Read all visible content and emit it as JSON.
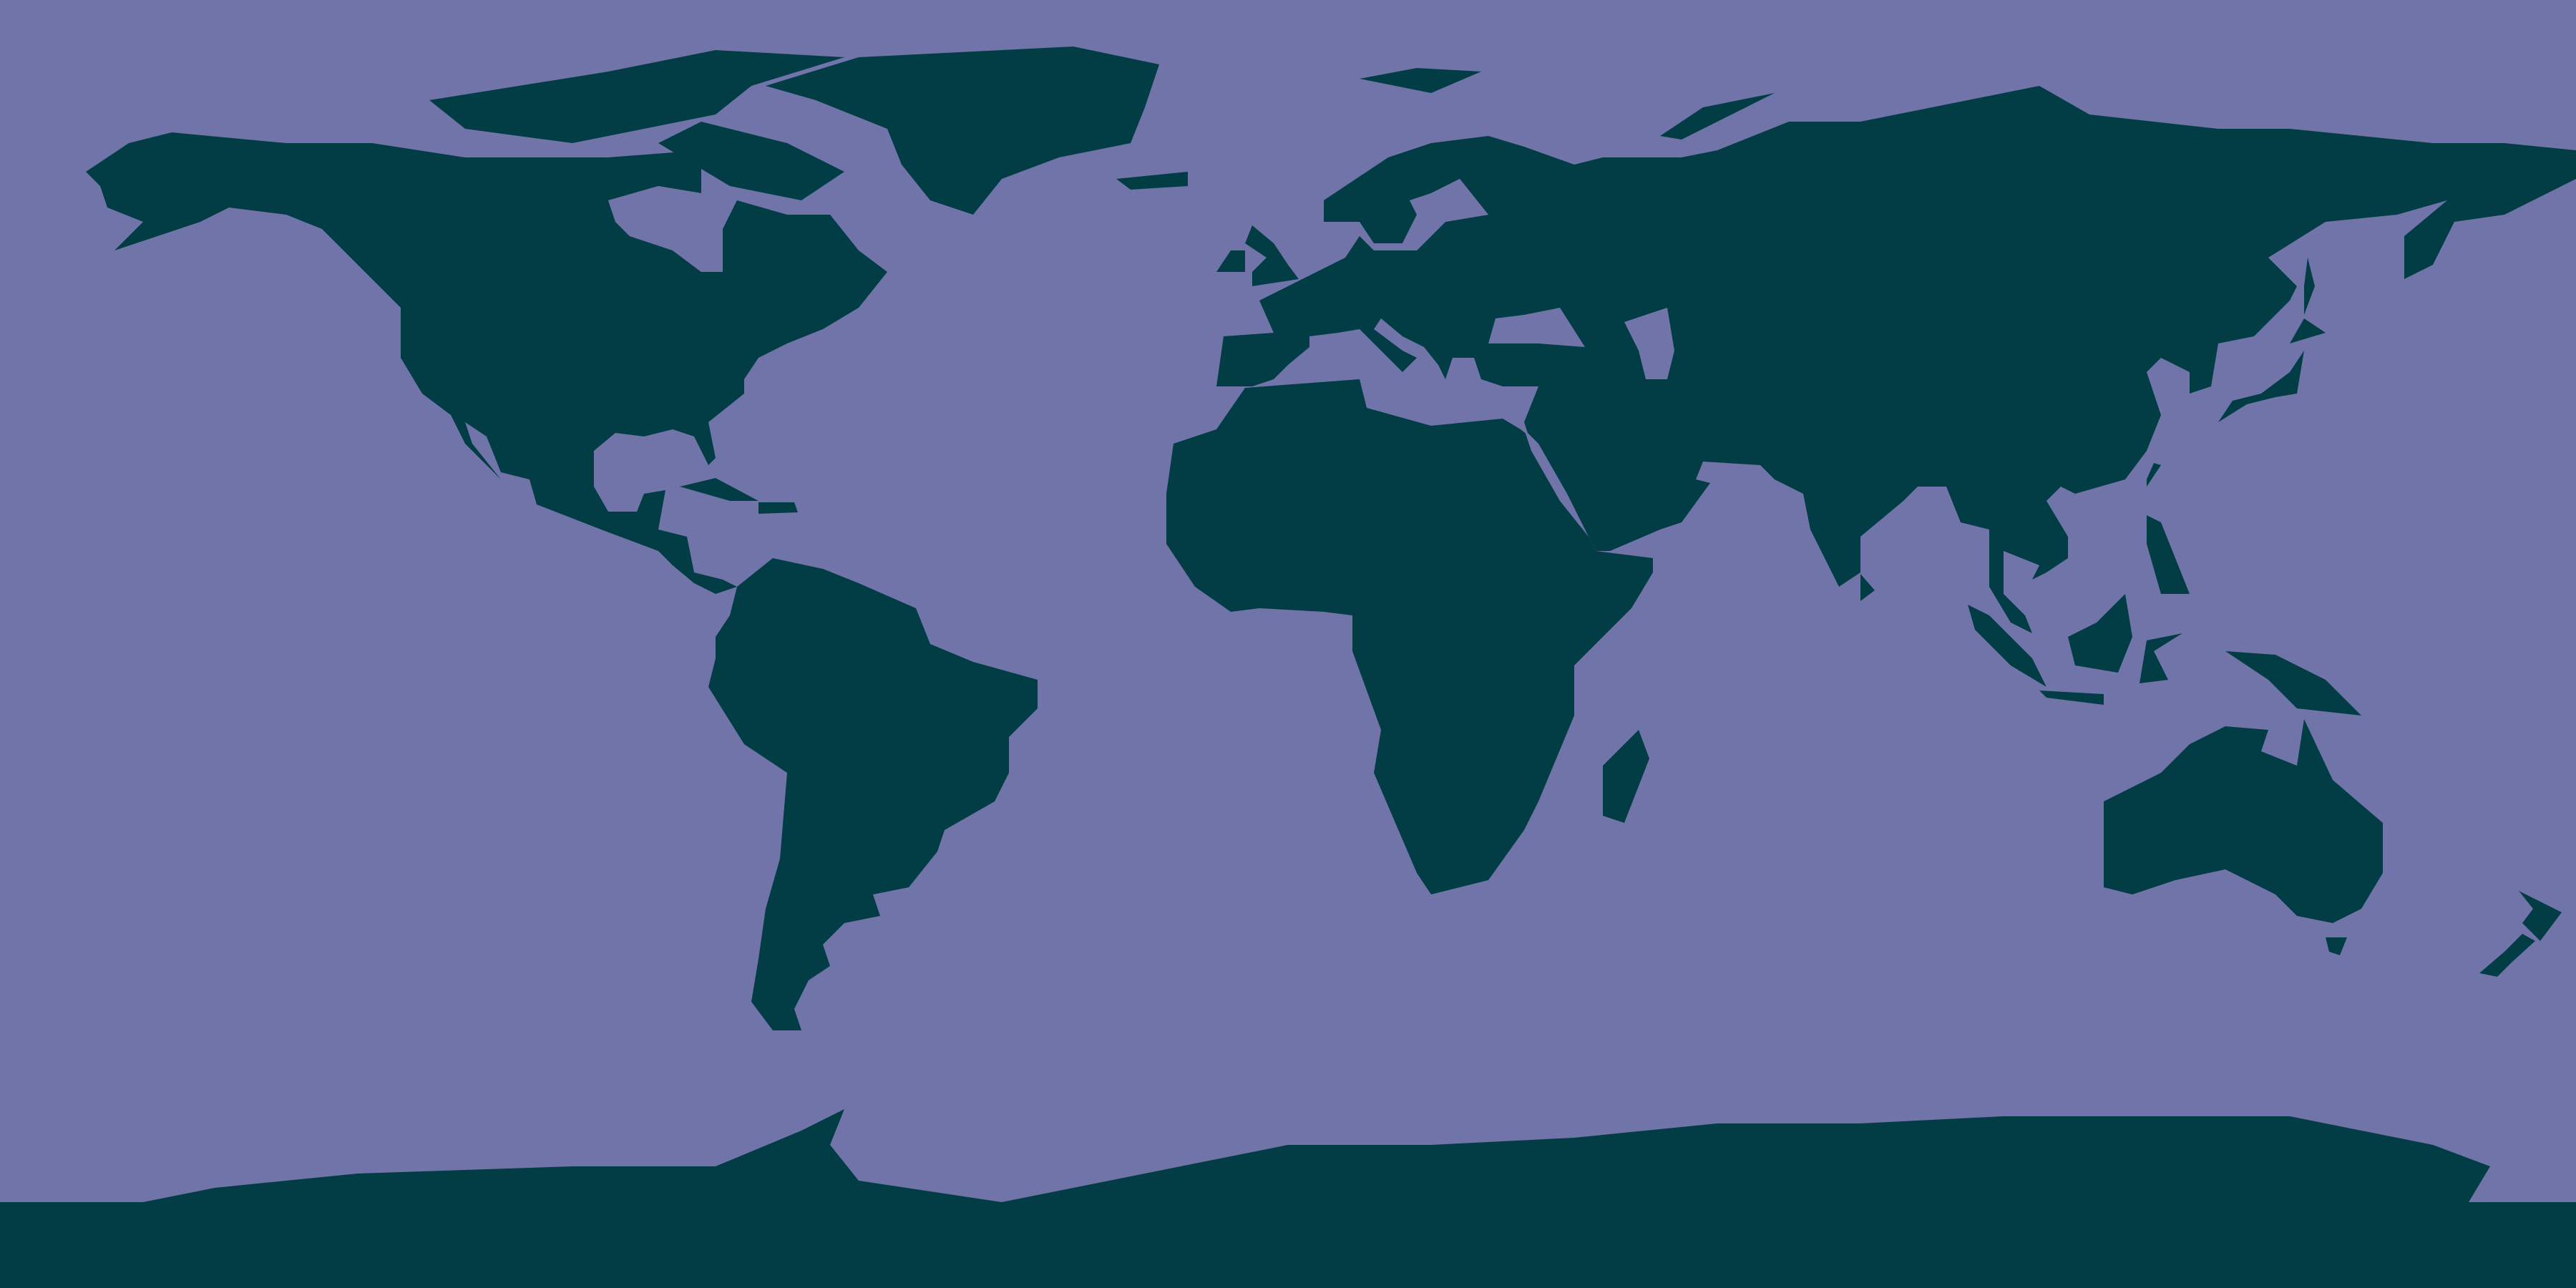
{
  "map": {
    "projection": "equirectangular",
    "colors": {
      "ocean": "#7074a8",
      "land": "#023d45",
      "density_low": "#ffee00",
      "density_mid": "#ffa000",
      "density_high": "#dd1100"
    }
  }
}
